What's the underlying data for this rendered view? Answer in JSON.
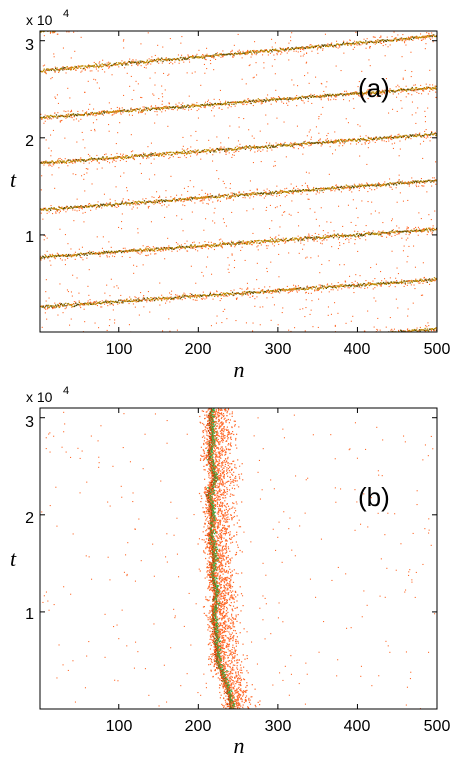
{
  "chart_data": [
    {
      "type": "scatter",
      "panel_label": "(a)",
      "xlabel": "n",
      "ylabel": "t",
      "xlim": [
        1,
        500
      ],
      "ylim": [
        0,
        31000
      ],
      "y_multiplier": "x 10",
      "y_exponent": "4",
      "xticks": [
        100,
        200,
        300,
        400,
        500
      ],
      "xtick_labels": [
        "100",
        "200",
        "300",
        "400",
        "500"
      ],
      "yticks": [
        10000,
        20000,
        30000
      ],
      "ytick_labels": [
        "1",
        "2",
        "3"
      ],
      "grid": false,
      "colors": {
        "core": "#c08a00",
        "halo": "#ff6a2a",
        "dark": "#5a4a00"
      },
      "pattern": "periodic-tilted-fronts",
      "lines": [
        {
          "t_at_n1": -2700,
          "t_at_n500": 300
        },
        {
          "t_at_n1": 2600,
          "t_at_n500": 5400
        },
        {
          "t_at_n1": 7700,
          "t_at_n500": 10600
        },
        {
          "t_at_n1": 12600,
          "t_at_n500": 15600
        },
        {
          "t_at_n1": 17400,
          "t_at_n500": 20400
        },
        {
          "t_at_n1": 22100,
          "t_at_n500": 25200
        },
        {
          "t_at_n1": 26900,
          "t_at_n500": 30500
        },
        {
          "t_at_n1": 31000,
          "t_at_n500": 34000
        }
      ],
      "background_density": 0.0065
    },
    {
      "type": "scatter",
      "panel_label": "(b)",
      "xlabel": "n",
      "ylabel": "t",
      "xlim": [
        1,
        500
      ],
      "ylim": [
        0,
        31000
      ],
      "y_multiplier": "x 10",
      "y_exponent": "4",
      "xticks": [
        100,
        200,
        300,
        400,
        500
      ],
      "xtick_labels": [
        "100",
        "200",
        "300",
        "400",
        "500"
      ],
      "yticks": [
        10000,
        20000,
        30000
      ],
      "ytick_labels": [
        "1",
        "2",
        "3"
      ],
      "grid": false,
      "colors": {
        "core": "#3fa83f",
        "halo": "#ff6a2a",
        "dark": "#c23a00"
      },
      "pattern": "localized-wandering-band",
      "band_center": [
        {
          "t": 0,
          "n": 243
        },
        {
          "t": 1500,
          "n": 240
        },
        {
          "t": 3000,
          "n": 234
        },
        {
          "t": 4500,
          "n": 226
        },
        {
          "t": 6000,
          "n": 224
        },
        {
          "t": 8000,
          "n": 222
        },
        {
          "t": 10000,
          "n": 220
        },
        {
          "t": 12000,
          "n": 223
        },
        {
          "t": 14000,
          "n": 218
        },
        {
          "t": 16000,
          "n": 221
        },
        {
          "t": 18000,
          "n": 216
        },
        {
          "t": 20000,
          "n": 219
        },
        {
          "t": 22000,
          "n": 214
        },
        {
          "t": 24000,
          "n": 221
        },
        {
          "t": 26000,
          "n": 215
        },
        {
          "t": 28000,
          "n": 218
        },
        {
          "t": 30000,
          "n": 216
        },
        {
          "t": 31000,
          "n": 217
        }
      ],
      "band_halo_width": 30,
      "background_density": 0.0025
    }
  ]
}
